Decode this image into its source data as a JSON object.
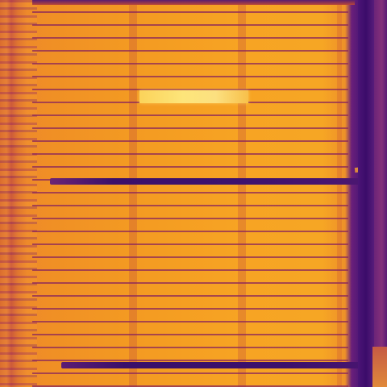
{
  "image": {
    "colormap": "inferno",
    "accent_colors": {
      "hot": "#fde57a",
      "warm": "#f39a22",
      "cool": "#d86a2f",
      "cold": "#3b0f6a"
    }
  }
}
